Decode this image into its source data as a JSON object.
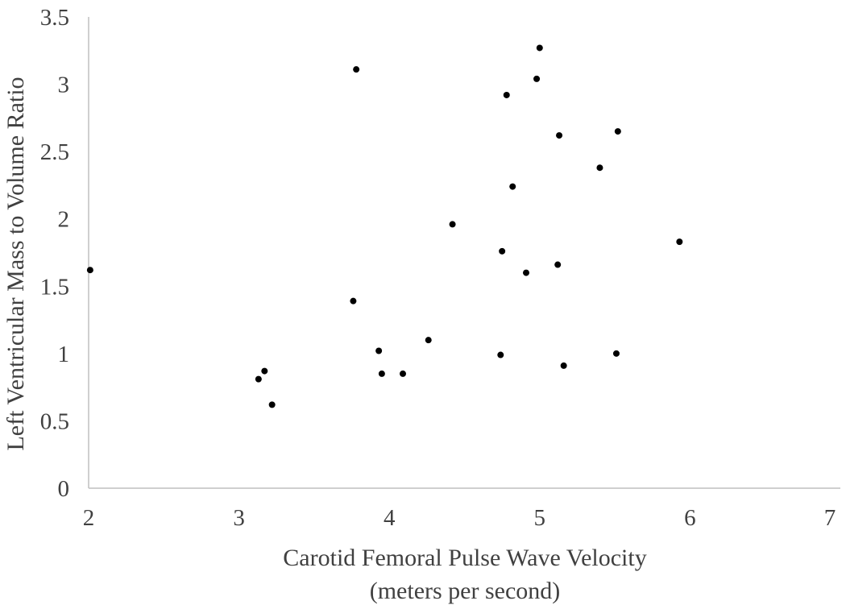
{
  "chart_data": {
    "type": "scatter",
    "title": "",
    "xlabel_lines": [
      "Carotid Femoral Pulse Wave Velocity",
      "(meters per second)"
    ],
    "ylabel": "Left Ventricular Mass to Volume Ratio",
    "xlim": [
      2,
      7
    ],
    "ylim": [
      0,
      3.5
    ],
    "x_ticks": [
      "2",
      "3",
      "4",
      "5",
      "6",
      "7"
    ],
    "y_ticks": [
      "0",
      "0.5",
      "1",
      "1.5",
      "2",
      "2.5",
      "3",
      "3.5"
    ],
    "grid": false,
    "legend": "none",
    "marker_color": "#000000",
    "axis_color": "#bfbfbf",
    "series": [
      {
        "points": [
          {
            "x": 2.01,
            "y": 1.62
          },
          {
            "x": 3.13,
            "y": 0.81
          },
          {
            "x": 3.17,
            "y": 0.87
          },
          {
            "x": 3.22,
            "y": 0.62
          },
          {
            "x": 3.76,
            "y": 1.39
          },
          {
            "x": 3.78,
            "y": 3.11
          },
          {
            "x": 3.93,
            "y": 1.02
          },
          {
            "x": 3.95,
            "y": 0.85
          },
          {
            "x": 4.09,
            "y": 0.85
          },
          {
            "x": 4.26,
            "y": 1.1
          },
          {
            "x": 4.42,
            "y": 1.96
          },
          {
            "x": 4.74,
            "y": 0.99
          },
          {
            "x": 4.75,
            "y": 1.76
          },
          {
            "x": 4.78,
            "y": 2.92
          },
          {
            "x": 4.82,
            "y": 2.24
          },
          {
            "x": 4.91,
            "y": 1.6
          },
          {
            "x": 4.98,
            "y": 3.04
          },
          {
            "x": 5.0,
            "y": 3.27
          },
          {
            "x": 5.12,
            "y": 1.66
          },
          {
            "x": 5.13,
            "y": 2.62
          },
          {
            "x": 5.16,
            "y": 0.91
          },
          {
            "x": 5.4,
            "y": 2.38
          },
          {
            "x": 5.51,
            "y": 1.0
          },
          {
            "x": 5.52,
            "y": 2.65
          },
          {
            "x": 5.93,
            "y": 1.83
          }
        ]
      }
    ]
  }
}
